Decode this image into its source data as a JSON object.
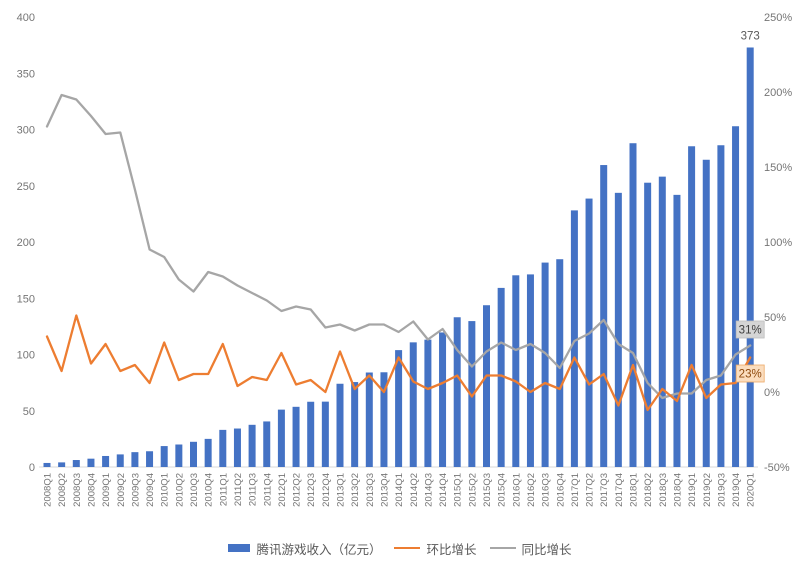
{
  "chart_data": {
    "type": "bar",
    "title": "",
    "grid": false,
    "legend_position": "bottom",
    "categories": [
      "2008Q1",
      "2008Q2",
      "2008Q3",
      "2008Q4",
      "2009Q1",
      "2009Q2",
      "2009Q3",
      "2009Q4",
      "2010Q1",
      "2010Q2",
      "2010Q3",
      "2010Q4",
      "2011Q1",
      "2011Q2",
      "2011Q3",
      "2011Q4",
      "2012Q1",
      "2012Q2",
      "2012Q3",
      "2012Q4",
      "2013Q1",
      "2013Q2",
      "2013Q3",
      "2013Q4",
      "2014Q1",
      "2014Q2",
      "2014Q3",
      "2014Q4",
      "2015Q1",
      "2015Q2",
      "2015Q3",
      "2015Q4",
      "2016Q1",
      "2016Q2",
      "2016Q3",
      "2016Q4",
      "2017Q1",
      "2017Q2",
      "2017Q3",
      "2017Q4",
      "2018Q1",
      "2018Q2",
      "2018Q3",
      "2018Q4",
      "2019Q1",
      "2019Q2",
      "2019Q3",
      "2019Q4",
      "2020Q1"
    ],
    "series": [
      {
        "name": "腾讯游戏收入（亿元）",
        "type": "bar",
        "axis": "left",
        "color": "#4472C4",
        "values": [
          3.6,
          4.1,
          6.2,
          7.4,
          9.8,
          11.2,
          13.2,
          14.0,
          18.6,
          20.0,
          22.4,
          25.0,
          33.0,
          34.2,
          37.5,
          40.5,
          51.0,
          53.5,
          58.0,
          58.1,
          74.0,
          75.5,
          84.0,
          84.2,
          103.9,
          110.8,
          113.2,
          119.6,
          133.1,
          129.7,
          143.8,
          159.2,
          170.4,
          171.2,
          181.7,
          184.7,
          228.1,
          238.6,
          268.4,
          243.7,
          287.8,
          252.7,
          258.1,
          241.9,
          285.1,
          273.1,
          286.0,
          302.9,
          372.9
        ]
      },
      {
        "name": "环比增长",
        "type": "line",
        "axis": "right",
        "color": "#ED7D31",
        "values_pct": [
          37,
          14,
          51,
          19,
          32,
          14,
          18,
          6,
          33,
          8,
          12,
          12,
          32,
          4,
          10,
          8,
          26,
          5,
          8,
          0,
          27,
          2,
          11,
          0,
          23,
          7,
          2,
          6,
          11,
          -3,
          11,
          11,
          7,
          0,
          6,
          2,
          23,
          5,
          12,
          -9,
          18,
          -12,
          2,
          -6,
          18,
          -4,
          5,
          6,
          23
        ]
      },
      {
        "name": "同比增长",
        "type": "line",
        "axis": "right",
        "color": "#A6A6A6",
        "values_pct": [
          177,
          198,
          195,
          184,
          172,
          173,
          135,
          95,
          90,
          75,
          67,
          80,
          77,
          71,
          66,
          61,
          54,
          57,
          55,
          43,
          45,
          41,
          45,
          45,
          40,
          47,
          35,
          42,
          28,
          17,
          27,
          33,
          28,
          32,
          26,
          16,
          34,
          39,
          48,
          32,
          26,
          6,
          -4,
          -1,
          -1,
          8,
          11,
          25,
          31
        ]
      }
    ],
    "left_axis": {
      "min": 0,
      "max": 400,
      "step": 50,
      "ticks": [
        "400",
        "350",
        "300",
        "250",
        "200",
        "150",
        "100",
        "50",
        "0"
      ]
    },
    "right_axis": {
      "min": -50,
      "max": 250,
      "step": 50,
      "ticks": [
        "250%",
        "200%",
        "150%",
        "100%",
        "50%",
        "0%",
        "-50%"
      ]
    },
    "annotations": [
      {
        "text": "373",
        "series": "腾讯游戏收入（亿元）",
        "index": 48,
        "style": "plain"
      },
      {
        "text": "31%",
        "series": "同比增长",
        "index": 48,
        "style": "gray-box",
        "bg": "#D5D5D5",
        "border": "#BDBDBD",
        "fg": "#3F3F3F"
      },
      {
        "text": "23%",
        "series": "环比增长",
        "index": 48,
        "style": "orange-box",
        "bg": "#FBDDBE",
        "border": "#EDA966",
        "fg": "#8F4A0E"
      }
    ]
  },
  "style_colors": {
    "axis_text": "#757575",
    "axis_line": "#D9D9D9",
    "data_label": "#595959"
  }
}
